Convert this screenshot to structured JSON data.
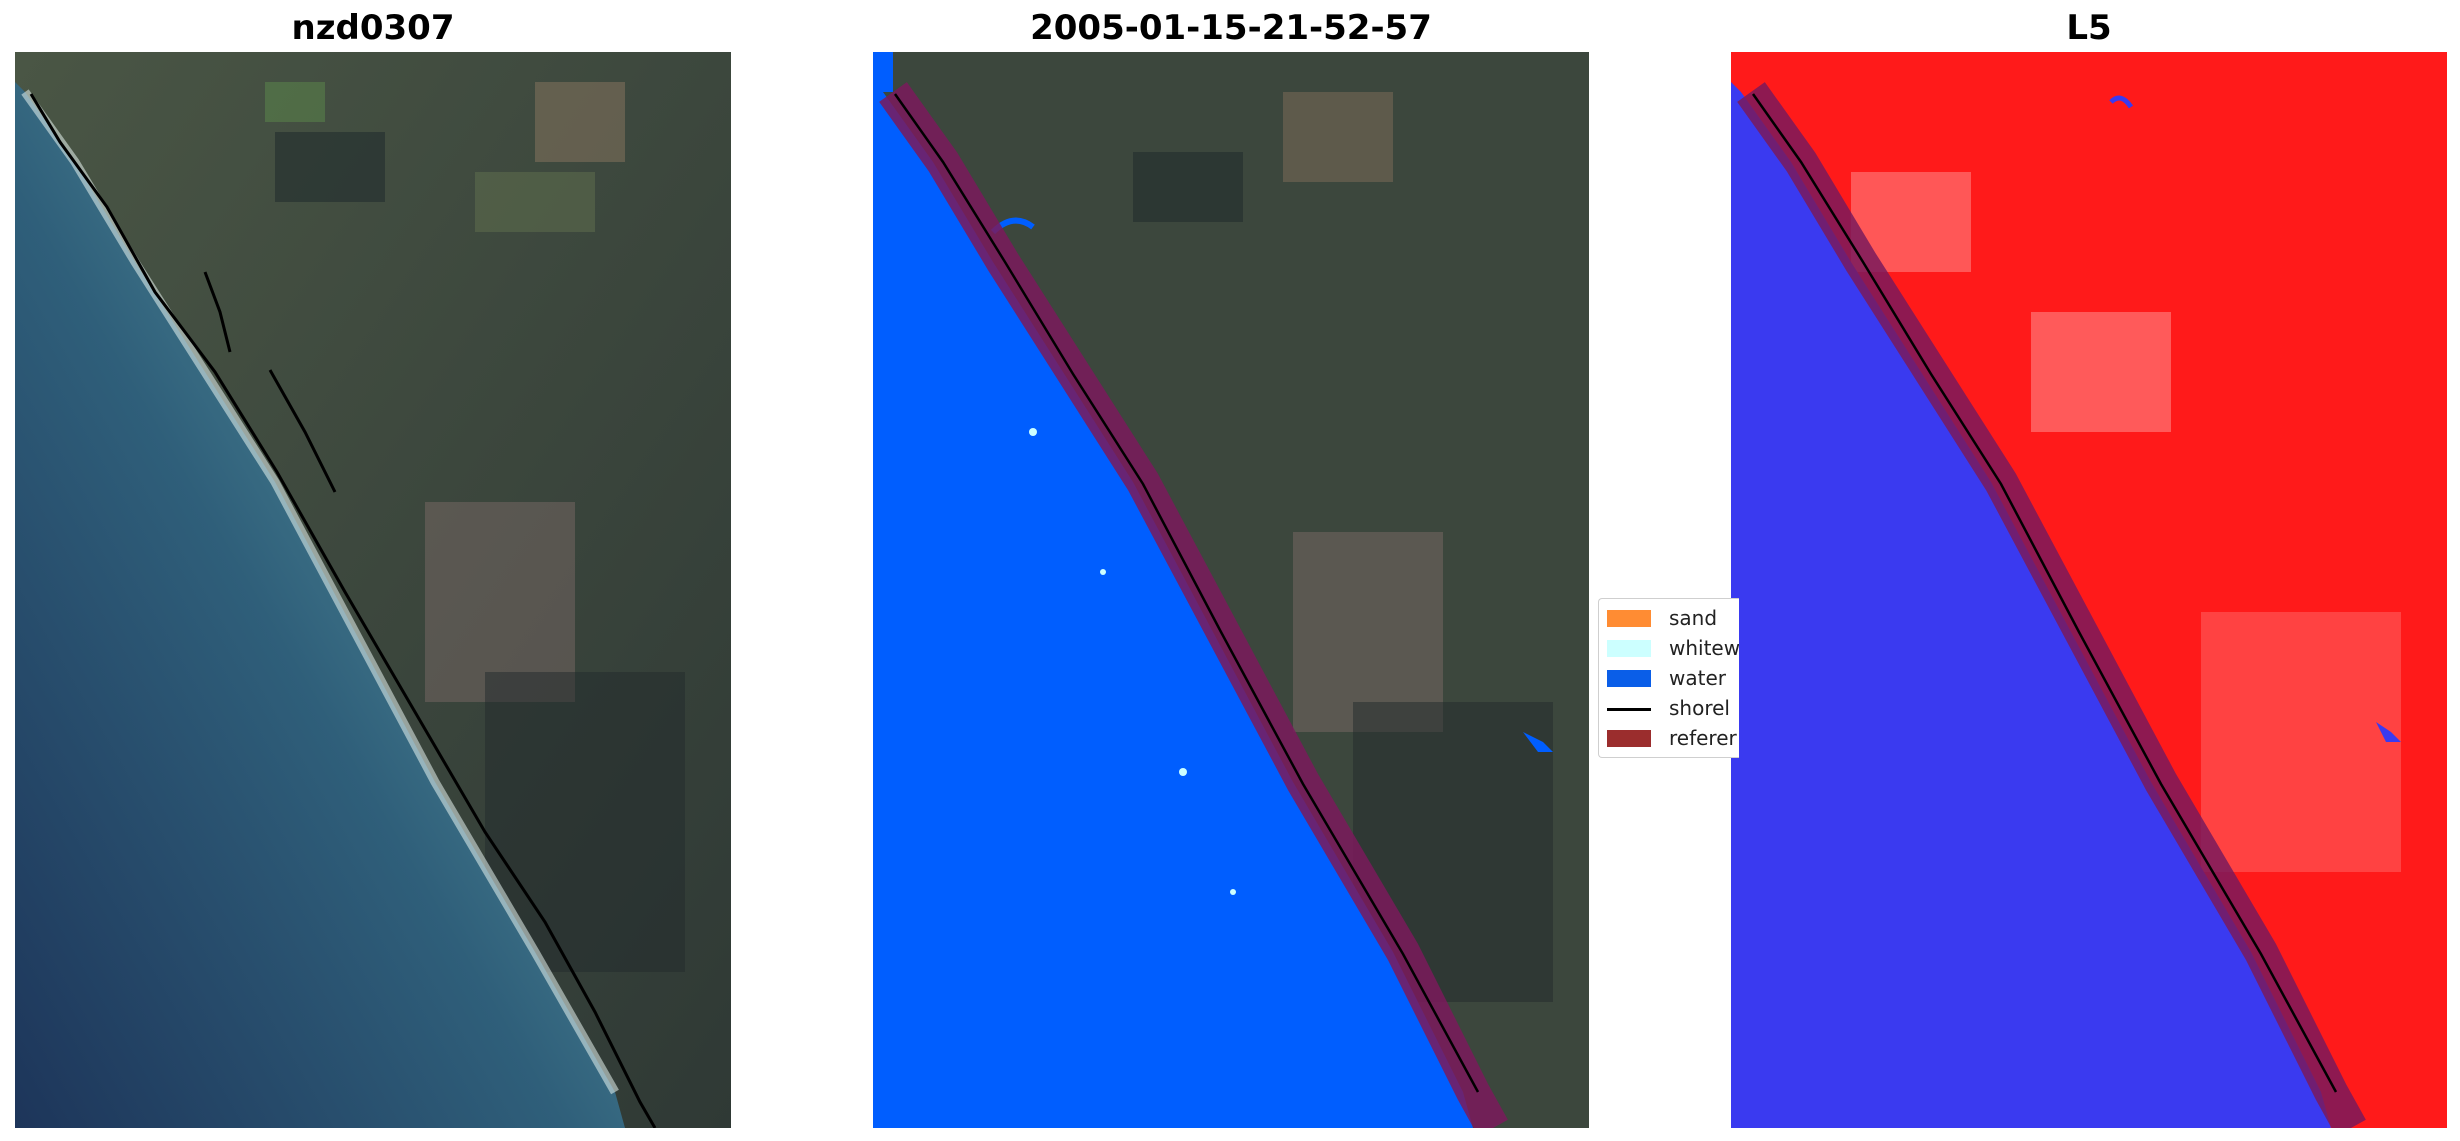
{
  "panels": [
    {
      "title": "nzd0307"
    },
    {
      "title": "2005-01-15-21-52-57"
    },
    {
      "title": "L5"
    }
  ],
  "legend": {
    "items": [
      {
        "label": "sand",
        "color": "#ff8c33",
        "kind": "patch"
      },
      {
        "label": "whitew",
        "color": "#ccffff",
        "kind": "patch"
      },
      {
        "label": "water",
        "color": "#0a5ee8",
        "kind": "patch"
      },
      {
        "label": "shorel",
        "color": "#000000",
        "kind": "line"
      },
      {
        "label": "referer",
        "color": "#9b2d2d",
        "kind": "patch"
      }
    ]
  },
  "colors": {
    "land_dark": "#38413a",
    "sea_deep": "#1f3a5e",
    "sea_shallow": "#5a97a0",
    "classified_water": "#005eff",
    "reference_buffer": "#7a1a5c",
    "index_red": "#ff1a1a",
    "index_blue": "#3a3af0",
    "shoreline": "#000000"
  }
}
